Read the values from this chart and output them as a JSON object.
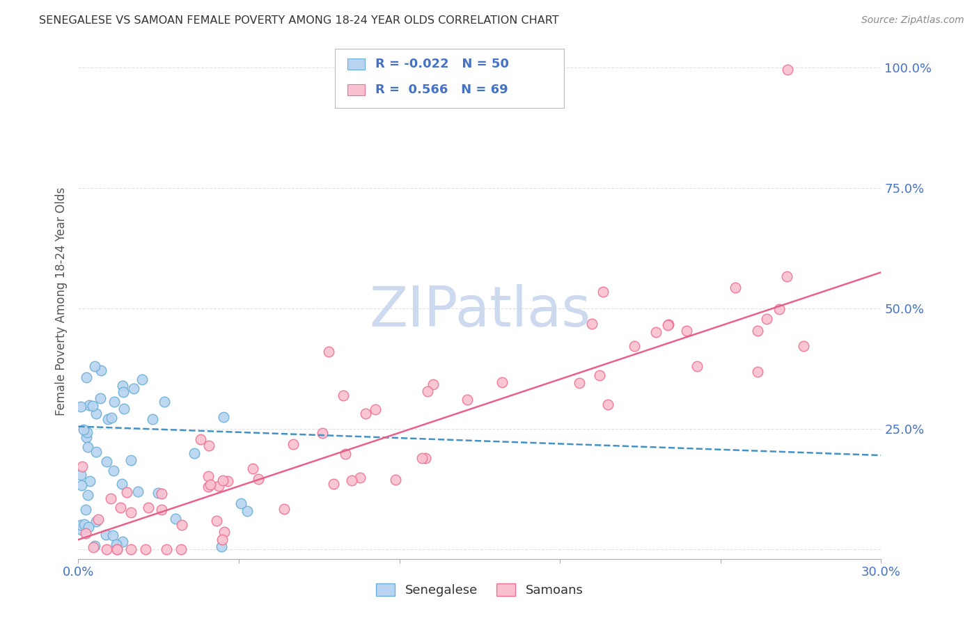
{
  "title": "SENEGALESE VS SAMOAN FEMALE POVERTY AMONG 18-24 YEAR OLDS CORRELATION CHART",
  "source": "Source: ZipAtlas.com",
  "ylabel": "Female Poverty Among 18-24 Year Olds",
  "xlim": [
    0.0,
    0.3
  ],
  "ylim": [
    -0.02,
    1.05
  ],
  "yticks": [
    0.0,
    0.25,
    0.5,
    0.75,
    1.0
  ],
  "ytick_labels": [
    "",
    "25.0%",
    "50.0%",
    "75.0%",
    "100.0%"
  ],
  "xtick_positions": [
    0.0,
    0.06,
    0.12,
    0.18,
    0.24,
    0.3
  ],
  "legend_R_sen": "-0.022",
  "legend_N_sen": "50",
  "legend_R_sam": "0.566",
  "legend_N_sam": "69",
  "sen_color_face": "#b8d4f0",
  "sen_color_edge": "#6baed6",
  "sam_color_face": "#f9c0d0",
  "sam_color_edge": "#f07090",
  "sen_line_color": "#4292c6",
  "sam_line_color": "#e8608a",
  "watermark": "ZIPatlas",
  "watermark_color": "#cdd9ef",
  "background_color": "#ffffff",
  "grid_color": "#cccccc",
  "title_color": "#333333",
  "axis_tick_color": "#4472c4",
  "ylabel_color": "#555555",
  "sen_trend_y0": 0.255,
  "sen_trend_y1": 0.195,
  "sam_trend_y0": 0.02,
  "sam_trend_y1": 0.575
}
